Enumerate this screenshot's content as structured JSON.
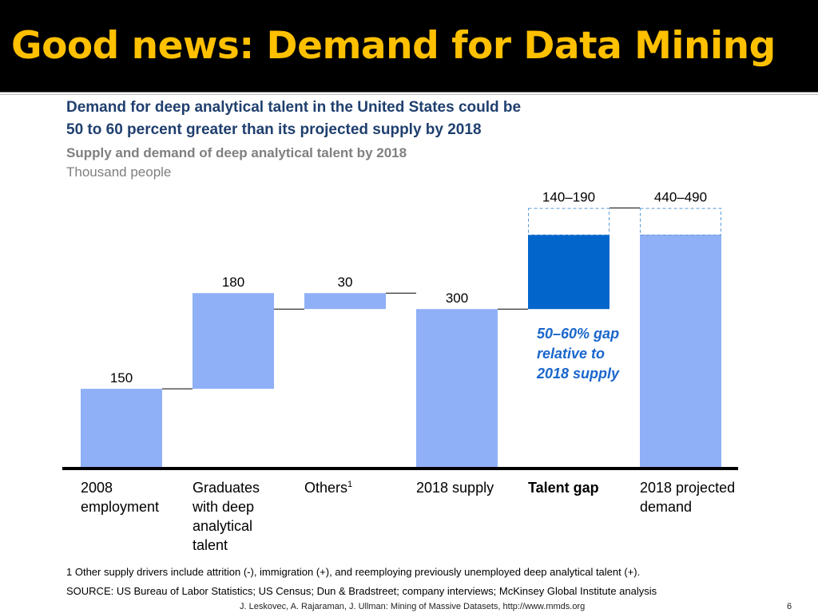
{
  "slide": {
    "title": "Good news: Demand for Data Mining",
    "heading_line1": "Demand for deep analytical talent in the United States could be",
    "heading_line2": "50 to 60 percent greater than its projected supply by 2018",
    "subheading": "Supply and demand of deep analytical talent by 2018",
    "units": "Thousand people",
    "footnote": "1  Other supply drivers include attrition (-), immigration (+), and reemploying previously unemployed deep analytical talent (+).",
    "source": "SOURCE: US Bureau of Labor Statistics; US Census; Dun & Bradstreet; company interviews; McKinsey Global Institute analysis",
    "credit": "J. Leskovec, A. Rajaraman, J. Ullman: Mining of Massive Datasets, http://www.mmds.org",
    "page_number": "6"
  },
  "colors": {
    "title_text": "#ffc000",
    "title_bar": "#000000",
    "heading": "#1f3f6e",
    "bar_light": "#8fb0f7",
    "bar_gap": "#0066cc",
    "gap_annotation": "#1a66cc",
    "range_outline": "#5b9bd5",
    "muted_text": "#7f7f7f"
  },
  "chart_data": {
    "type": "waterfall",
    "units": "Thousand people",
    "ylim": [
      0,
      520
    ],
    "bars": [
      {
        "category": "2008 employment",
        "label_lines": [
          "2008",
          "employment"
        ],
        "value_label": "150",
        "base": 0,
        "top": 150,
        "style": "light",
        "bold": false,
        "superscript": ""
      },
      {
        "category": "Graduates with deep analytical talent",
        "label_lines": [
          "Graduates",
          "with deep",
          "analytical",
          "talent"
        ],
        "value_label": "180",
        "base": 150,
        "top": 330,
        "style": "light",
        "bold": false,
        "superscript": ""
      },
      {
        "category": "Others",
        "label_lines": [
          "Others"
        ],
        "value_label": "30",
        "base": 300,
        "top": 330,
        "style": "light",
        "bold": false,
        "superscript": "1"
      },
      {
        "category": "2018 supply",
        "label_lines": [
          "2018 supply"
        ],
        "value_label": "300",
        "base": 0,
        "top": 300,
        "style": "light",
        "bold": false,
        "superscript": ""
      },
      {
        "category": "Talent gap",
        "label_lines": [
          "Talent gap"
        ],
        "value_label": "140–190",
        "base": 300,
        "top": 440,
        "range_top": 490,
        "style": "gap",
        "bold": true,
        "superscript": ""
      },
      {
        "category": "2018 projected demand",
        "label_lines": [
          "2018 projected",
          "demand"
        ],
        "value_label": "440–490",
        "base": 0,
        "top": 440,
        "range_top": 490,
        "style": "light",
        "bold": false,
        "superscript": ""
      }
    ],
    "annotation_lines": [
      "50–60% gap",
      "relative to",
      "2018 supply"
    ]
  }
}
